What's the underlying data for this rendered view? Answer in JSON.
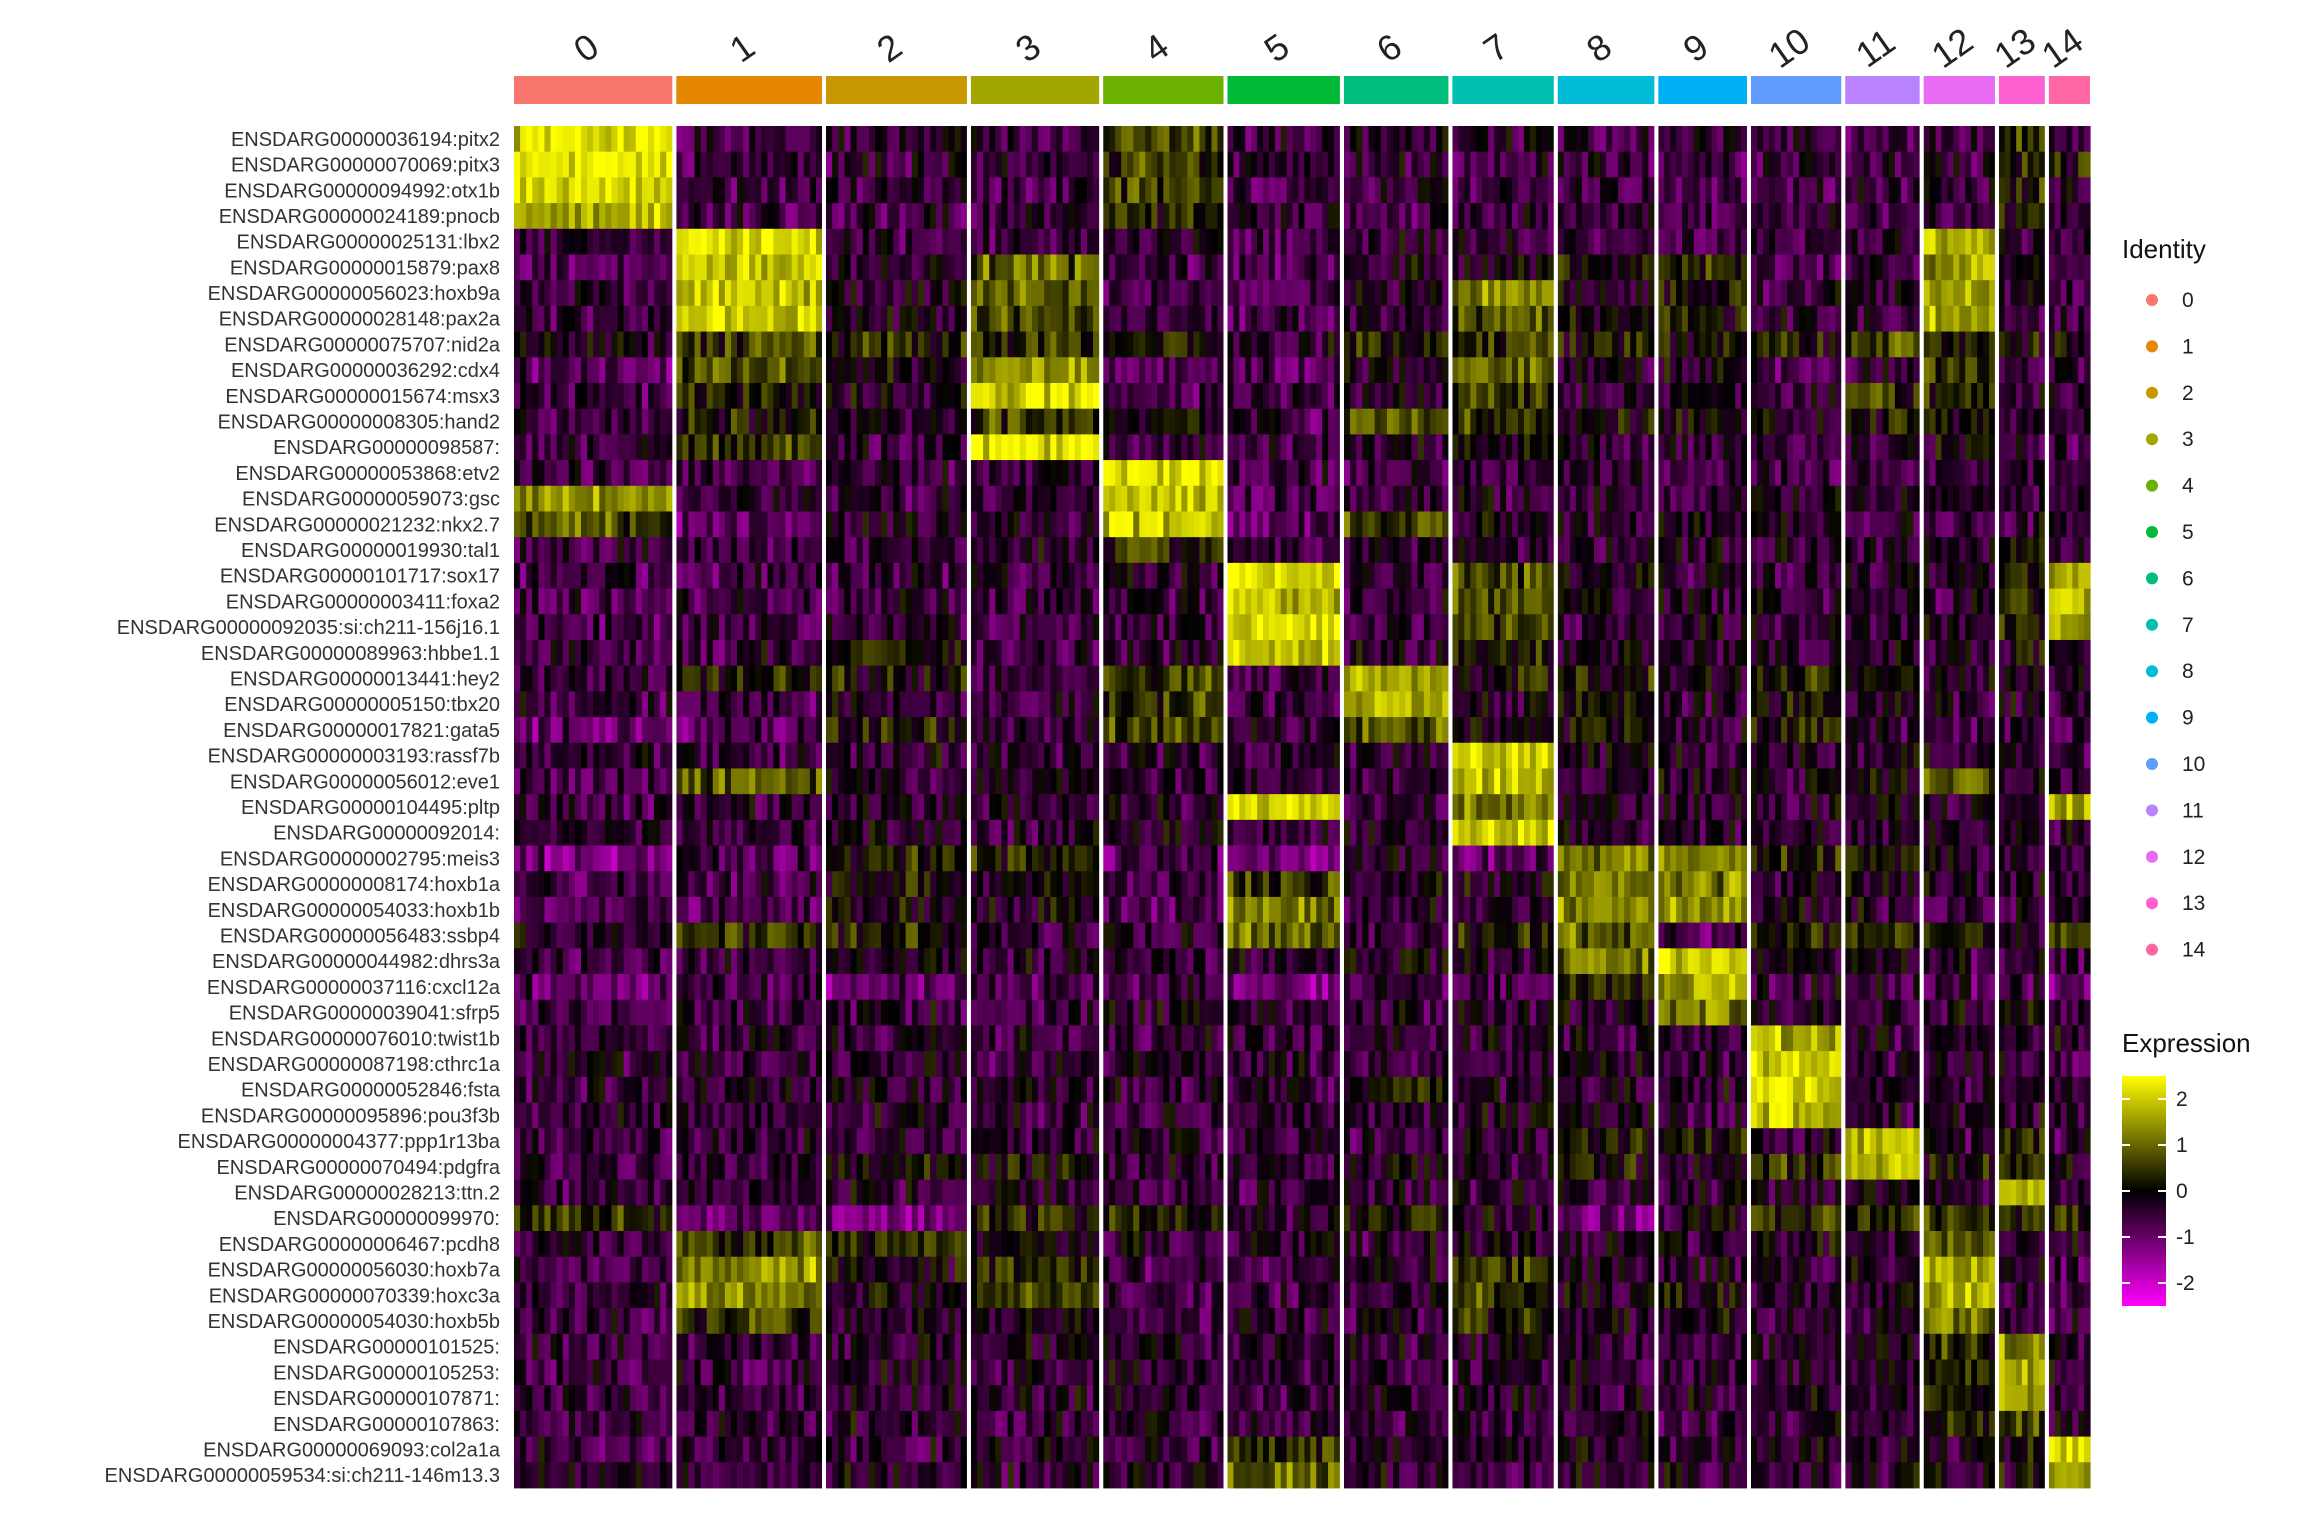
{
  "chart_data": {
    "type": "heatmap",
    "title": "",
    "xlabel": "",
    "ylabel": "",
    "clusters": [
      {
        "label": "0",
        "color": "#F8766D",
        "weight": 1.0
      },
      {
        "label": "1",
        "color": "#E58700",
        "weight": 0.92
      },
      {
        "label": "2",
        "color": "#C99800",
        "weight": 0.89
      },
      {
        "label": "3",
        "color": "#A3A500",
        "weight": 0.81
      },
      {
        "label": "4",
        "color": "#6BB100",
        "weight": 0.76
      },
      {
        "label": "5",
        "color": "#00BA38",
        "weight": 0.71
      },
      {
        "label": "6",
        "color": "#00BF7D",
        "weight": 0.66
      },
      {
        "label": "7",
        "color": "#00C0AF",
        "weight": 0.64
      },
      {
        "label": "8",
        "color": "#00BCD8",
        "weight": 0.61
      },
      {
        "label": "9",
        "color": "#00B0F6",
        "weight": 0.56
      },
      {
        "label": "10",
        "color": "#619CFF",
        "weight": 0.57
      },
      {
        "label": "11",
        "color": "#B983FF",
        "weight": 0.47
      },
      {
        "label": "12",
        "color": "#E76BF3",
        "weight": 0.45
      },
      {
        "label": "13",
        "color": "#FD61D1",
        "weight": 0.29
      },
      {
        "label": "14",
        "color": "#FF67A4",
        "weight": 0.26
      }
    ],
    "genes": [
      "ENSDARG00000036194:pitx2",
      "ENSDARG00000070069:pitx3",
      "ENSDARG00000094992:otx1b",
      "ENSDARG00000024189:pnocb",
      "ENSDARG00000025131:lbx2",
      "ENSDARG00000015879:pax8",
      "ENSDARG00000056023:hoxb9a",
      "ENSDARG00000028148:pax2a",
      "ENSDARG00000075707:nid2a",
      "ENSDARG00000036292:cdx4",
      "ENSDARG00000015674:msx3",
      "ENSDARG00000008305:hand2",
      "ENSDARG00000098587:",
      "ENSDARG00000053868:etv2",
      "ENSDARG00000059073:gsc",
      "ENSDARG00000021232:nkx2.7",
      "ENSDARG00000019930:tal1",
      "ENSDARG00000101717:sox17",
      "ENSDARG00000003411:foxa2",
      "ENSDARG00000092035:si:ch211-156j16.1",
      "ENSDARG00000089963:hbbe1.1",
      "ENSDARG00000013441:hey2",
      "ENSDARG00000005150:tbx20",
      "ENSDARG00000017821:gata5",
      "ENSDARG00000003193:rassf7b",
      "ENSDARG00000056012:eve1",
      "ENSDARG00000104495:pltp",
      "ENSDARG00000092014:",
      "ENSDARG00000002795:meis3",
      "ENSDARG00000008174:hoxb1a",
      "ENSDARG00000054033:hoxb1b",
      "ENSDARG00000056483:ssbp4",
      "ENSDARG00000044982:dhrs3a",
      "ENSDARG00000037116:cxcl12a",
      "ENSDARG00000039041:sfrp5",
      "ENSDARG00000076010:twist1b",
      "ENSDARG00000087198:cthrc1a",
      "ENSDARG00000052846:fsta",
      "ENSDARG00000095896:pou3f3b",
      "ENSDARG00000004377:ppp1r13ba",
      "ENSDARG00000070494:pdgfra",
      "ENSDARG00000028213:ttn.2",
      "ENSDARG00000099970:",
      "ENSDARG00000006467:pcdh8",
      "ENSDARG00000056030:hoxb7a",
      "ENSDARG00000070339:hoxc3a",
      "ENSDARG00000054030:hoxb5b",
      "ENSDARG00000101525:",
      "ENSDARG00000105253:",
      "ENSDARG00000107871:",
      "ENSDARG00000107863:",
      "ENSDARG00000069093:col2a1a",
      "ENSDARG00000059534:si:ch211-146m13.3"
    ],
    "mean_expression": [
      [
        2.2,
        -0.6,
        -0.5,
        -0.6,
        0.6,
        -0.6,
        -0.5,
        -0.5,
        -0.5,
        -0.6,
        -0.5,
        -0.6,
        -0.5,
        0.4,
        -0.5
      ],
      [
        2.2,
        -0.6,
        -0.5,
        -0.6,
        0.6,
        -0.6,
        -0.5,
        -0.5,
        -0.5,
        -0.6,
        -0.5,
        -0.6,
        -0.5,
        0.4,
        0.3
      ],
      [
        2.0,
        -0.6,
        -0.5,
        -0.6,
        0.5,
        -0.6,
        -0.5,
        -0.5,
        -0.5,
        -0.6,
        -0.5,
        -0.6,
        -0.5,
        0.5,
        -0.5
      ],
      [
        1.8,
        -0.6,
        -0.5,
        -0.6,
        0.3,
        -0.6,
        -0.5,
        -0.5,
        -0.5,
        -0.6,
        -0.5,
        -0.6,
        -0.5,
        0.2,
        -0.5
      ],
      [
        -0.6,
        2.2,
        -0.5,
        -0.5,
        -0.6,
        -0.6,
        -0.5,
        -0.5,
        -0.5,
        -0.6,
        -0.5,
        -0.5,
        1.8,
        -0.5,
        -0.5
      ],
      [
        -0.8,
        1.9,
        -0.4,
        0.9,
        -0.7,
        -0.8,
        -0.3,
        -0.2,
        0.1,
        0.4,
        -0.6,
        -0.5,
        1.6,
        -0.5,
        -0.6
      ],
      [
        -0.6,
        2.0,
        -0.3,
        1.0,
        -0.6,
        -0.6,
        -0.4,
        1.4,
        0.0,
        0.2,
        -0.5,
        -0.3,
        1.7,
        -0.4,
        -0.5
      ],
      [
        -0.6,
        1.9,
        -0.4,
        0.7,
        -0.6,
        -0.6,
        -0.4,
        0.9,
        -0.1,
        0.0,
        -0.5,
        -0.5,
        1.6,
        -0.5,
        -0.5
      ],
      [
        -0.2,
        0.6,
        0.3,
        0.4,
        0.2,
        -0.4,
        0.3,
        0.4,
        0.1,
        0.0,
        0.2,
        0.6,
        0.3,
        0.2,
        -0.2
      ],
      [
        -0.9,
        0.8,
        -0.2,
        1.6,
        -0.8,
        -0.8,
        -0.4,
        1.1,
        -0.3,
        -0.2,
        -0.7,
        -0.5,
        0.6,
        -0.5,
        -0.6
      ],
      [
        -0.7,
        0.3,
        -0.3,
        2.0,
        -0.6,
        -0.6,
        -0.4,
        0.3,
        -0.4,
        -0.4,
        -0.5,
        0.3,
        0.4,
        -0.5,
        -0.5
      ],
      [
        -0.7,
        0.2,
        -0.3,
        0.5,
        0.0,
        -0.6,
        0.9,
        0.4,
        -0.1,
        -0.2,
        -0.3,
        0.2,
        0.0,
        -0.3,
        -0.5
      ],
      [
        -0.5,
        0.4,
        -0.4,
        2.1,
        -0.5,
        -0.5,
        -0.4,
        -0.2,
        -0.4,
        -0.4,
        -0.5,
        -0.4,
        -0.1,
        -0.4,
        -0.5
      ],
      [
        -0.6,
        -0.6,
        -0.5,
        -0.5,
        2.2,
        -0.6,
        -0.5,
        -0.5,
        -0.5,
        -0.6,
        -0.5,
        -0.5,
        -0.5,
        -0.4,
        -0.5
      ],
      [
        1.4,
        -0.6,
        -0.5,
        -0.5,
        2.0,
        -0.6,
        -0.5,
        -0.5,
        -0.5,
        -0.6,
        -0.5,
        -0.5,
        -0.5,
        -0.3,
        -0.5
      ],
      [
        0.7,
        -0.9,
        -0.3,
        -0.5,
        1.8,
        -0.8,
        0.8,
        -0.2,
        -0.3,
        -0.4,
        -0.4,
        -0.4,
        -0.6,
        -0.3,
        -0.5
      ],
      [
        -0.6,
        -0.6,
        -0.4,
        -0.4,
        0.4,
        -0.6,
        -0.3,
        -0.3,
        -0.4,
        -0.4,
        -0.4,
        -0.3,
        -0.4,
        0.3,
        -0.4
      ],
      [
        -0.6,
        -0.6,
        -0.5,
        -0.5,
        -0.5,
        2.1,
        -0.5,
        0.8,
        -0.3,
        -0.4,
        -0.4,
        -0.4,
        -0.4,
        0.2,
        1.8
      ],
      [
        -0.6,
        -0.6,
        -0.5,
        -0.5,
        -0.4,
        2.0,
        -0.5,
        0.7,
        -0.3,
        -0.4,
        -0.4,
        -0.3,
        -0.4,
        0.3,
        2.1
      ],
      [
        -0.6,
        -0.6,
        -0.5,
        -0.5,
        -0.4,
        2.2,
        -0.5,
        0.6,
        -0.4,
        -0.4,
        -0.4,
        -0.4,
        -0.4,
        0.3,
        1.6
      ],
      [
        -0.5,
        -0.5,
        0.1,
        -0.5,
        -0.4,
        2.1,
        -0.4,
        0.2,
        -0.3,
        -0.4,
        -0.4,
        -0.3,
        -0.4,
        0.0,
        -0.2
      ],
      [
        -0.5,
        0.1,
        0.1,
        -0.5,
        0.6,
        -0.5,
        1.6,
        0.1,
        0.2,
        -0.2,
        0.3,
        0.1,
        -0.3,
        -0.2,
        -0.4
      ],
      [
        -0.6,
        -0.6,
        -0.4,
        -0.5,
        0.5,
        -0.5,
        1.7,
        -0.3,
        0.1,
        -0.4,
        0.2,
        -0.4,
        -0.4,
        -0.3,
        -0.5
      ],
      [
        -1.0,
        -0.8,
        0.2,
        -0.4,
        0.5,
        -0.4,
        0.9,
        -0.3,
        0.0,
        -0.4,
        0.2,
        -0.4,
        -0.5,
        -0.4,
        -0.5
      ],
      [
        -0.5,
        -0.5,
        -0.4,
        -0.5,
        -0.4,
        -0.5,
        -0.4,
        2.0,
        -0.3,
        -0.4,
        -0.4,
        -0.3,
        -0.4,
        -0.3,
        -0.4
      ],
      [
        -0.6,
        0.9,
        -0.3,
        -0.3,
        -0.5,
        -0.5,
        -0.4,
        1.9,
        -0.3,
        -0.3,
        -0.4,
        -0.2,
        0.9,
        -0.3,
        -0.4
      ],
      [
        -0.5,
        -0.5,
        -0.4,
        -0.5,
        -0.3,
        2.0,
        -0.4,
        1.2,
        -0.3,
        -0.4,
        -0.4,
        -0.3,
        -0.3,
        -0.2,
        1.7
      ],
      [
        -0.4,
        -0.5,
        -0.3,
        -0.4,
        -0.3,
        -0.4,
        -0.3,
        2.0,
        -0.3,
        -0.3,
        -0.3,
        -0.3,
        -0.3,
        -0.3,
        -0.3
      ],
      [
        -1.2,
        -0.8,
        0.4,
        0.3,
        -0.8,
        -1.0,
        -0.3,
        -0.9,
        1.2,
        1.4,
        0.2,
        0.1,
        -0.4,
        -0.4,
        -0.6
      ],
      [
        -0.7,
        -0.6,
        0.1,
        -0.2,
        -0.6,
        0.5,
        -0.3,
        -0.2,
        1.3,
        1.2,
        -0.3,
        -0.3,
        -0.4,
        -0.4,
        -0.5
      ],
      [
        -0.8,
        -0.7,
        0.0,
        -0.3,
        -0.7,
        1.3,
        -0.4,
        -0.3,
        1.3,
        1.5,
        -0.4,
        -0.4,
        -0.5,
        -0.5,
        -0.5
      ],
      [
        -0.4,
        0.4,
        0.3,
        -0.5,
        -0.5,
        1.0,
        -0.5,
        0.3,
        1.0,
        -0.8,
        0.1,
        0.3,
        0.2,
        -0.2,
        0.6
      ],
      [
        -0.6,
        -0.5,
        -0.3,
        -0.4,
        -0.5,
        -0.4,
        -0.3,
        -0.3,
        1.0,
        2.1,
        -0.2,
        -0.3,
        -0.4,
        -0.3,
        -0.5
      ],
      [
        -0.9,
        -0.6,
        -1.0,
        -0.7,
        -0.5,
        -1.2,
        -0.6,
        -0.5,
        0.4,
        1.6,
        -0.5,
        -0.5,
        -0.7,
        -0.5,
        -1.0
      ],
      [
        -0.5,
        -0.5,
        -0.4,
        -0.4,
        -0.4,
        -0.5,
        -0.4,
        -0.4,
        -0.3,
        1.2,
        -0.4,
        -0.4,
        -0.4,
        -0.3,
        -0.4
      ],
      [
        -0.5,
        -0.5,
        -0.4,
        -0.4,
        -0.4,
        -0.5,
        -0.4,
        -0.4,
        -0.3,
        -0.4,
        1.8,
        -0.4,
        -0.4,
        -0.3,
        -0.4
      ],
      [
        -0.5,
        -0.5,
        -0.4,
        -0.4,
        -0.4,
        -0.5,
        -0.4,
        -0.4,
        -0.3,
        -0.4,
        2.0,
        -0.4,
        -0.4,
        -0.3,
        -0.4
      ],
      [
        -0.5,
        -0.5,
        -0.3,
        -0.4,
        -0.4,
        -0.5,
        0.3,
        -0.3,
        -0.3,
        -0.4,
        2.2,
        -0.3,
        -0.4,
        -0.3,
        -0.4
      ],
      [
        -0.5,
        -0.5,
        -0.4,
        -0.4,
        -0.4,
        -0.5,
        -0.4,
        -0.4,
        -0.3,
        -0.4,
        2.0,
        -0.4,
        -0.4,
        -0.3,
        -0.4
      ],
      [
        -0.5,
        -0.5,
        -0.4,
        -0.4,
        -0.4,
        -0.5,
        -0.4,
        -0.4,
        0.2,
        0.3,
        -0.4,
        1.9,
        -0.4,
        0.2,
        -0.4
      ],
      [
        -0.5,
        -0.4,
        0.0,
        0.1,
        -0.4,
        -0.5,
        -0.2,
        -0.3,
        0.0,
        -0.2,
        0.3,
        1.8,
        0.1,
        0.2,
        -0.4
      ],
      [
        -0.5,
        -0.5,
        -0.4,
        -0.4,
        -0.4,
        -0.5,
        -0.4,
        -0.4,
        -0.3,
        -0.4,
        -0.4,
        -0.3,
        -0.3,
        2.0,
        -0.4
      ],
      [
        0.4,
        -0.9,
        -1.2,
        0.2,
        0.3,
        -0.4,
        0.2,
        -0.3,
        -1.2,
        -0.4,
        0.5,
        0.8,
        0.6,
        0.5,
        0.3
      ],
      [
        -0.5,
        0.5,
        0.2,
        -0.3,
        -0.4,
        -0.5,
        -0.4,
        -0.3,
        -0.3,
        -0.4,
        -0.2,
        -0.2,
        1.0,
        -0.3,
        -0.4
      ],
      [
        -0.6,
        1.5,
        -0.2,
        0.4,
        -0.6,
        -0.6,
        -0.4,
        0.5,
        -0.3,
        -0.3,
        -0.4,
        -0.3,
        1.7,
        -0.4,
        -0.5
      ],
      [
        -0.6,
        1.4,
        -0.2,
        0.5,
        -0.6,
        -0.6,
        -0.3,
        0.6,
        -0.2,
        -0.2,
        -0.4,
        -0.3,
        1.6,
        -0.4,
        -0.5
      ],
      [
        -0.6,
        0.6,
        -0.3,
        0.0,
        -0.5,
        -0.5,
        -0.3,
        0.2,
        -0.2,
        -0.2,
        -0.4,
        -0.3,
        1.2,
        -0.4,
        -0.5
      ],
      [
        -0.5,
        -0.5,
        -0.4,
        -0.4,
        -0.4,
        -0.5,
        -0.4,
        -0.4,
        -0.3,
        -0.4,
        -0.4,
        -0.3,
        0.4,
        1.3,
        -0.4
      ],
      [
        -0.5,
        -0.5,
        -0.4,
        -0.4,
        -0.4,
        -0.5,
        -0.4,
        -0.4,
        -0.3,
        -0.4,
        -0.4,
        -0.3,
        0.3,
        1.8,
        -0.4
      ],
      [
        -0.5,
        -0.5,
        -0.4,
        -0.4,
        -0.4,
        -0.5,
        -0.4,
        -0.4,
        -0.3,
        -0.4,
        -0.4,
        -0.3,
        0.2,
        1.7,
        -0.4
      ],
      [
        -0.5,
        -0.5,
        -0.4,
        -0.4,
        -0.4,
        -0.5,
        -0.4,
        -0.4,
        -0.3,
        -0.4,
        -0.4,
        -0.3,
        0.3,
        0.5,
        -0.4
      ],
      [
        -0.5,
        -0.5,
        -0.4,
        -0.4,
        -0.4,
        0.4,
        -0.4,
        -0.4,
        -0.3,
        -0.4,
        -0.4,
        -0.3,
        -0.3,
        0.0,
        2.1
      ],
      [
        -0.5,
        -0.5,
        -0.4,
        -0.4,
        -0.4,
        1.0,
        -0.4,
        -0.4,
        -0.3,
        -0.4,
        -0.4,
        -0.3,
        -0.3,
        0.0,
        1.2
      ]
    ],
    "color_scale": {
      "min": -2.5,
      "max": 2.5,
      "stops": [
        {
          "value": -2.5,
          "color": "#FF00FF"
        },
        {
          "value": 0,
          "color": "#000000"
        },
        {
          "value": 2.5,
          "color": "#FFFF00"
        }
      ]
    },
    "legend": {
      "placement": "right",
      "identity_title": "Identity",
      "expression_title": "Expression",
      "expression_ticks": [
        2,
        1,
        0,
        -1,
        -2
      ]
    }
  }
}
